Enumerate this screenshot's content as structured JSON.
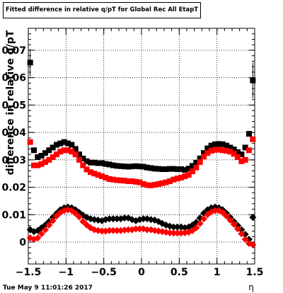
{
  "title": "Fitted difference in relative q/pT for Global Rec All EtapT",
  "timestamp": "Tue May  9 11:01:26 2017",
  "colors": {
    "series_black": "#000000",
    "series_red": "#ff0000"
  },
  "chart_data": {
    "type": "scatter",
    "title": "Fitted difference in relative q/pT for Global Rec All EtapT",
    "xlabel": "η",
    "ylabel": "difference in relative q/pT",
    "xlim": [
      -1.5,
      1.5
    ],
    "ylim": [
      -0.008,
      0.078
    ],
    "grid": true,
    "xticks": [
      -1.5,
      -1,
      -0.5,
      0,
      0.5,
      1,
      1.5
    ],
    "xtick_labels": [
      "−1.5",
      "−1",
      "−0.5",
      "0",
      "0.5",
      "1",
      "1.5"
    ],
    "yticks": [
      0,
      0.01,
      0.02,
      0.03,
      0.04,
      0.05,
      0.06,
      0.07
    ],
    "ytick_labels": [
      "0",
      "0.01",
      "0.02",
      "0.03",
      "0.04",
      "0.05",
      "0.06",
      "0.07"
    ],
    "series": [
      {
        "marker": "square",
        "color": "#000000",
        "points": [
          [
            -1.475,
            0.0655
          ],
          [
            -1.425,
            0.0335
          ],
          [
            -1.375,
            0.031
          ],
          [
            -1.325,
            0.0315
          ],
          [
            -1.275,
            0.0325
          ],
          [
            -1.225,
            0.0335
          ],
          [
            -1.175,
            0.0345
          ],
          [
            -1.125,
            0.0355
          ],
          [
            -1.075,
            0.036
          ],
          [
            -1.025,
            0.0365
          ],
          [
            -0.975,
            0.036
          ],
          [
            -0.925,
            0.0355
          ],
          [
            -0.875,
            0.034
          ],
          [
            -0.825,
            0.032
          ],
          [
            -0.775,
            0.0305
          ],
          [
            -0.725,
            0.0295
          ],
          [
            -0.675,
            0.029
          ],
          [
            -0.625,
            0.029
          ],
          [
            -0.575,
            0.0288
          ],
          [
            -0.525,
            0.0288
          ],
          [
            -0.475,
            0.0285
          ],
          [
            -0.425,
            0.0283
          ],
          [
            -0.375,
            0.028
          ],
          [
            -0.325,
            0.0278
          ],
          [
            -0.275,
            0.0277
          ],
          [
            -0.225,
            0.0276
          ],
          [
            -0.175,
            0.0275
          ],
          [
            -0.125,
            0.0276
          ],
          [
            -0.075,
            0.0277
          ],
          [
            -0.025,
            0.0276
          ],
          [
            0.025,
            0.0275
          ],
          [
            0.075,
            0.0272
          ],
          [
            0.125,
            0.027
          ],
          [
            0.175,
            0.0268
          ],
          [
            0.225,
            0.0267
          ],
          [
            0.275,
            0.0266
          ],
          [
            0.325,
            0.0266
          ],
          [
            0.375,
            0.0267
          ],
          [
            0.425,
            0.0267
          ],
          [
            0.475,
            0.0266
          ],
          [
            0.525,
            0.0266
          ],
          [
            0.575,
            0.0263
          ],
          [
            0.625,
            0.0268
          ],
          [
            0.675,
            0.0278
          ],
          [
            0.725,
            0.029
          ],
          [
            0.775,
            0.0305
          ],
          [
            0.825,
            0.0325
          ],
          [
            0.875,
            0.0342
          ],
          [
            0.925,
            0.0352
          ],
          [
            0.975,
            0.0357
          ],
          [
            1.025,
            0.0358
          ],
          [
            1.075,
            0.0357
          ],
          [
            1.125,
            0.0352
          ],
          [
            1.175,
            0.0345
          ],
          [
            1.225,
            0.0338
          ],
          [
            1.275,
            0.0328
          ],
          [
            1.325,
            0.032
          ],
          [
            1.375,
            0.0345
          ],
          [
            1.425,
            0.0395
          ],
          [
            1.475,
            0.059
          ]
        ]
      },
      {
        "marker": "square",
        "color": "#ff0000",
        "points": [
          [
            -1.475,
            0.0365
          ],
          [
            -1.425,
            0.028
          ],
          [
            -1.375,
            0.028
          ],
          [
            -1.325,
            0.0285
          ],
          [
            -1.275,
            0.0292
          ],
          [
            -1.225,
            0.03
          ],
          [
            -1.175,
            0.031
          ],
          [
            -1.125,
            0.032
          ],
          [
            -1.075,
            0.033
          ],
          [
            -1.025,
            0.0335
          ],
          [
            -0.975,
            0.0335
          ],
          [
            -0.925,
            0.033
          ],
          [
            -0.875,
            0.032
          ],
          [
            -0.825,
            0.03
          ],
          [
            -0.775,
            0.028
          ],
          [
            -0.725,
            0.0265
          ],
          [
            -0.675,
            0.0255
          ],
          [
            -0.625,
            0.025
          ],
          [
            -0.575,
            0.0245
          ],
          [
            -0.525,
            0.024
          ],
          [
            -0.475,
            0.0235
          ],
          [
            -0.425,
            0.023
          ],
          [
            -0.375,
            0.0228
          ],
          [
            -0.325,
            0.0226
          ],
          [
            -0.275,
            0.0225
          ],
          [
            -0.225,
            0.0224
          ],
          [
            -0.175,
            0.0222
          ],
          [
            -0.125,
            0.0222
          ],
          [
            -0.075,
            0.022
          ],
          [
            -0.025,
            0.0218
          ],
          [
            0.025,
            0.0212
          ],
          [
            0.075,
            0.0208
          ],
          [
            0.125,
            0.0207
          ],
          [
            0.175,
            0.0209
          ],
          [
            0.225,
            0.0212
          ],
          [
            0.275,
            0.0215
          ],
          [
            0.325,
            0.0218
          ],
          [
            0.375,
            0.0222
          ],
          [
            0.425,
            0.0228
          ],
          [
            0.475,
            0.0232
          ],
          [
            0.525,
            0.0235
          ],
          [
            0.575,
            0.024
          ],
          [
            0.625,
            0.0245
          ],
          [
            0.675,
            0.0258
          ],
          [
            0.725,
            0.0272
          ],
          [
            0.775,
            0.0292
          ],
          [
            0.825,
            0.0312
          ],
          [
            0.875,
            0.0325
          ],
          [
            0.925,
            0.0333
          ],
          [
            0.975,
            0.0336
          ],
          [
            1.025,
            0.0337
          ],
          [
            1.075,
            0.0335
          ],
          [
            1.125,
            0.0333
          ],
          [
            1.175,
            0.033
          ],
          [
            1.225,
            0.0322
          ],
          [
            1.275,
            0.031
          ],
          [
            1.325,
            0.0295
          ],
          [
            1.375,
            0.03
          ],
          [
            1.425,
            0.0335
          ],
          [
            1.475,
            0.0375
          ]
        ]
      },
      {
        "marker": "diamond",
        "color": "#000000",
        "points": [
          [
            -1.475,
            0.0045
          ],
          [
            -1.425,
            0.0038
          ],
          [
            -1.375,
            0.0042
          ],
          [
            -1.325,
            0.0052
          ],
          [
            -1.275,
            0.0062
          ],
          [
            -1.225,
            0.0075
          ],
          [
            -1.175,
            0.009
          ],
          [
            -1.125,
            0.0105
          ],
          [
            -1.075,
            0.0118
          ],
          [
            -1.025,
            0.0125
          ],
          [
            -0.975,
            0.0128
          ],
          [
            -0.925,
            0.0125
          ],
          [
            -0.875,
            0.0118
          ],
          [
            -0.825,
            0.0108
          ],
          [
            -0.775,
            0.0098
          ],
          [
            -0.725,
            0.009
          ],
          [
            -0.675,
            0.0085
          ],
          [
            -0.625,
            0.0082
          ],
          [
            -0.575,
            0.008
          ],
          [
            -0.525,
            0.0078
          ],
          [
            -0.475,
            0.0082
          ],
          [
            -0.425,
            0.0085
          ],
          [
            -0.375,
            0.0085
          ],
          [
            -0.325,
            0.0085
          ],
          [
            -0.275,
            0.0085
          ],
          [
            -0.225,
            0.0088
          ],
          [
            -0.175,
            0.0088
          ],
          [
            -0.125,
            0.0082
          ],
          [
            -0.075,
            0.0078
          ],
          [
            -0.025,
            0.0082
          ],
          [
            0.025,
            0.0085
          ],
          [
            0.075,
            0.0085
          ],
          [
            0.125,
            0.0082
          ],
          [
            0.175,
            0.008
          ],
          [
            0.225,
            0.0075
          ],
          [
            0.275,
            0.0068
          ],
          [
            0.325,
            0.0062
          ],
          [
            0.375,
            0.0058
          ],
          [
            0.425,
            0.0055
          ],
          [
            0.475,
            0.0055
          ],
          [
            0.525,
            0.0055
          ],
          [
            0.575,
            0.0052
          ],
          [
            0.625,
            0.0055
          ],
          [
            0.675,
            0.0062
          ],
          [
            0.725,
            0.0072
          ],
          [
            0.775,
            0.0088
          ],
          [
            0.825,
            0.0105
          ],
          [
            0.875,
            0.0118
          ],
          [
            0.925,
            0.0125
          ],
          [
            0.975,
            0.0128
          ],
          [
            1.025,
            0.0125
          ],
          [
            1.075,
            0.0118
          ],
          [
            1.125,
            0.0105
          ],
          [
            1.175,
            0.009
          ],
          [
            1.225,
            0.0075
          ],
          [
            1.275,
            0.006
          ],
          [
            1.325,
            0.0045
          ],
          [
            1.375,
            0.0028
          ],
          [
            1.425,
            0.001
          ],
          [
            1.475,
            0.009
          ]
        ]
      },
      {
        "marker": "diamond",
        "color": "#ff0000",
        "points": [
          [
            -1.475,
            0.0015
          ],
          [
            -1.425,
            0.001
          ],
          [
            -1.375,
            0.0015
          ],
          [
            -1.325,
            0.003
          ],
          [
            -1.275,
            0.0045
          ],
          [
            -1.225,
            0.0062
          ],
          [
            -1.175,
            0.0078
          ],
          [
            -1.125,
            0.0095
          ],
          [
            -1.075,
            0.0108
          ],
          [
            -1.025,
            0.0115
          ],
          [
            -0.975,
            0.0118
          ],
          [
            -0.925,
            0.0115
          ],
          [
            -0.875,
            0.0105
          ],
          [
            -0.825,
            0.0092
          ],
          [
            -0.775,
            0.0075
          ],
          [
            -0.725,
            0.0062
          ],
          [
            -0.675,
            0.0052
          ],
          [
            -0.625,
            0.0045
          ],
          [
            -0.575,
            0.0042
          ],
          [
            -0.525,
            0.004
          ],
          [
            -0.475,
            0.004
          ],
          [
            -0.425,
            0.0042
          ],
          [
            -0.375,
            0.0042
          ],
          [
            -0.325,
            0.0042
          ],
          [
            -0.275,
            0.0042
          ],
          [
            -0.225,
            0.0044
          ],
          [
            -0.175,
            0.0045
          ],
          [
            -0.125,
            0.0045
          ],
          [
            -0.075,
            0.0048
          ],
          [
            -0.025,
            0.0048
          ],
          [
            0.025,
            0.0048
          ],
          [
            0.075,
            0.0045
          ],
          [
            0.125,
            0.0045
          ],
          [
            0.175,
            0.0042
          ],
          [
            0.225,
            0.004
          ],
          [
            0.275,
            0.0038
          ],
          [
            0.325,
            0.0036
          ],
          [
            0.375,
            0.0034
          ],
          [
            0.425,
            0.0033
          ],
          [
            0.475,
            0.0033
          ],
          [
            0.525,
            0.0033
          ],
          [
            0.575,
            0.0034
          ],
          [
            0.625,
            0.0036
          ],
          [
            0.675,
            0.0042
          ],
          [
            0.725,
            0.0052
          ],
          [
            0.775,
            0.0068
          ],
          [
            0.825,
            0.0085
          ],
          [
            0.875,
            0.01
          ],
          [
            0.925,
            0.011
          ],
          [
            0.975,
            0.0115
          ],
          [
            1.025,
            0.0115
          ],
          [
            1.075,
            0.0108
          ],
          [
            1.125,
            0.0095
          ],
          [
            1.175,
            0.008
          ],
          [
            1.225,
            0.0065
          ],
          [
            1.275,
            0.0048
          ],
          [
            1.325,
            0.003
          ],
          [
            1.375,
            0.001
          ],
          [
            1.425,
            -0.0005
          ],
          [
            1.475,
            -0.001
          ]
        ]
      }
    ],
    "error_bars": [
      {
        "x": -1.475,
        "y": 0.0655,
        "err": 0.005
      },
      {
        "x": 1.475,
        "y": 0.059,
        "err": 0.0065
      }
    ]
  }
}
